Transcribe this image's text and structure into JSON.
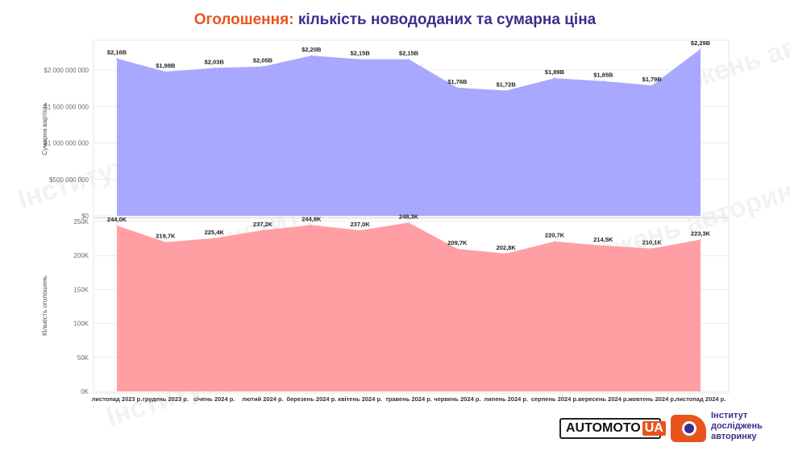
{
  "title": {
    "accent": "Оголошення:",
    "rest": " кількість новододаних та сумарна ціна"
  },
  "months": [
    "листопад 2023 р.",
    "грудень 2023 р.",
    "січень 2024 р.",
    "лютий 2024 р.",
    "березень 2024 р.",
    "квітень 2024 р.",
    "травень 2024 р.",
    "червень 2024 р.",
    "липень 2024 р.",
    "серпень 2024 р.",
    "вересень 2024 р.",
    "жовтень 2024 р.",
    "листопад 2024 р."
  ],
  "chart_data": [
    {
      "type": "area",
      "ylabel": "Сумарна вартість",
      "ylim": [
        0,
        2300000000
      ],
      "yticks": [
        0,
        500000000,
        1000000000,
        1500000000,
        2000000000
      ],
      "ytick_labels": [
        "$0",
        "$500 000 000",
        "$1 000 000 000",
        "$1 500 000 000",
        "$2 000 000 000"
      ],
      "values": [
        2160000000,
        1980000000,
        2030000000,
        2050000000,
        2200000000,
        2150000000,
        2150000000,
        1760000000,
        1720000000,
        1890000000,
        1850000000,
        1790000000,
        2290000000
      ],
      "data_labels": [
        "$2,16B",
        "$1,98B",
        "$2,03B",
        "$2,05B",
        "$2,20B",
        "$2,15B",
        "$2,15B",
        "$1,76B",
        "$1,72B",
        "$1,89B",
        "$1,85B",
        "$1,79B",
        "$2,29B"
      ],
      "color": "#a8a8ff"
    },
    {
      "type": "area",
      "ylabel": "Кількість оголошень",
      "ylim": [
        0,
        250000
      ],
      "yticks": [
        0,
        50000,
        100000,
        150000,
        200000,
        250000
      ],
      "ytick_labels": [
        "0K",
        "50K",
        "100K",
        "150K",
        "200K",
        "250K"
      ],
      "values": [
        244000,
        219700,
        225400,
        237200,
        244800,
        237000,
        248300,
        209700,
        202800,
        220700,
        214500,
        210100,
        223300
      ],
      "data_labels": [
        "244,0K",
        "219,7K",
        "225,4K",
        "237,2K",
        "244,8K",
        "237,0K",
        "248,3K",
        "209,7K",
        "202,8K",
        "220,7K",
        "214,5K",
        "210,1K",
        "223,3K"
      ],
      "color": "#ff9fa4"
    }
  ],
  "logos": {
    "automoto": {
      "main": "AUTOMOTO",
      "suffix": "UA"
    },
    "institute": {
      "line1": "Інститут",
      "line2": "досліджень",
      "line3": "авторинку"
    }
  },
  "watermark": "Інститут досліджень авторинку"
}
